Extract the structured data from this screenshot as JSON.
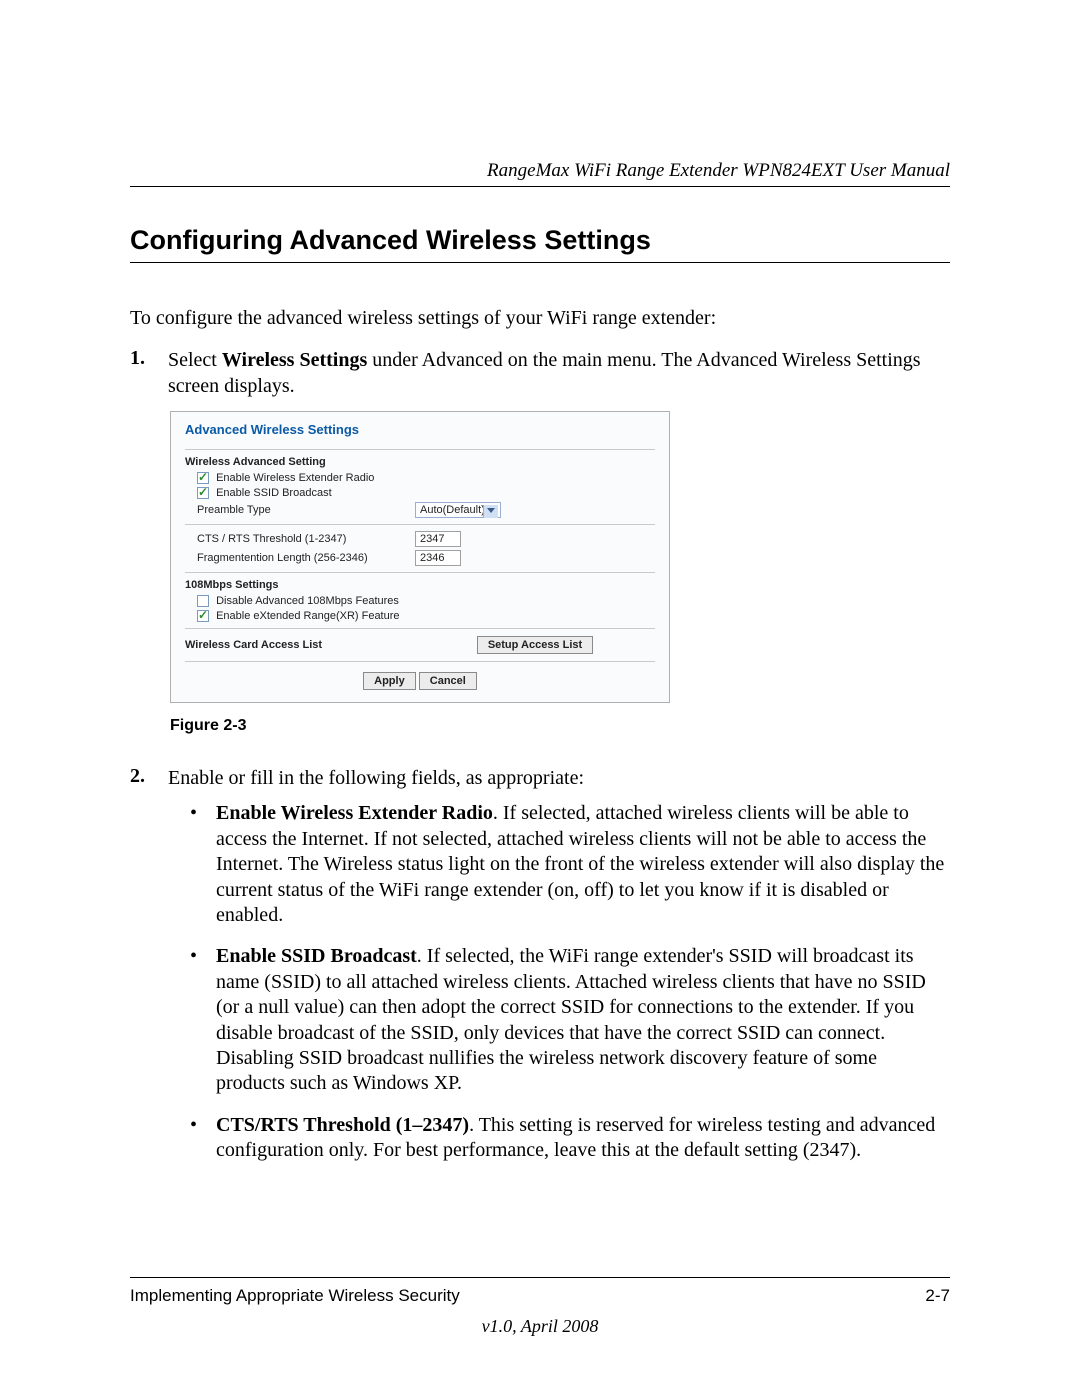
{
  "header": {
    "doc_title": "RangeMax WiFi Range Extender WPN824EXT User Manual"
  },
  "section": {
    "heading": "Configuring Advanced Wireless Settings",
    "intro": "To configure the advanced wireless settings of your WiFi range extender:"
  },
  "step1": {
    "num": "1.",
    "prefix": "Select ",
    "bold": "Wireless Settings",
    "suffix": " under Advanced on the main menu. The Advanced Wireless Settings screen displays."
  },
  "screenshot": {
    "title": "Advanced Wireless Settings",
    "sec1_head": "Wireless Advanced Setting",
    "chk_radio": "Enable Wireless Extender Radio",
    "chk_ssid": "Enable SSID Broadcast",
    "preamble_label": "Preamble Type",
    "preamble_value": "Auto(Default)",
    "cts_label": "CTS / RTS Threshold (1-2347)",
    "cts_value": "2347",
    "frag_label": "Fragmentention Length (256-2346)",
    "frag_value": "2346",
    "sec2_head": "108Mbps Settings",
    "chk_108": "Disable Advanced 108Mbps Features",
    "chk_xr": "Enable eXtended Range(XR) Feature",
    "sec3_head": "Wireless Card Access List",
    "btn_access": "Setup Access List",
    "btn_apply": "Apply",
    "btn_cancel": "Cancel",
    "colors": {
      "title": "#0a5aa6",
      "border": "#b0b0b0",
      "bg": "#fafbfd",
      "check": "#2e8b2e"
    }
  },
  "figure_caption": "Figure 2-3",
  "step2": {
    "num": "2.",
    "text": "Enable or fill in the following fields, as appropriate:"
  },
  "bullets": [
    {
      "bold": "Enable Wireless Extender Radio",
      "rest": ". If selected, attached wireless clients will be able to access the Internet. If not selected, attached wireless clients will not be able to access the Internet. The Wireless status light on the front of the wireless extender will also display the current status of the WiFi range extender (on, off) to let you know if it is disabled or enabled."
    },
    {
      "bold": "Enable SSID Broadcast",
      "rest": ". If selected, the WiFi range extender's SSID will broadcast its name (SSID) to all attached wireless clients. Attached wireless clients that have no SSID (or a null value) can then adopt the correct SSID for connections to the extender. If you disable broadcast of the SSID, only devices that have the correct SSID can connect. Disabling SSID broadcast nullifies the wireless network discovery feature of some products such as Windows XP."
    },
    {
      "bold": "CTS/RTS Threshold (1–2347)",
      "rest": ". This setting is reserved for wireless testing and advanced configuration only. For best performance, leave this at the default setting (2347)."
    }
  ],
  "footer": {
    "left": "Implementing Appropriate Wireless Security",
    "right": "2-7",
    "version": "v1.0, April 2008"
  }
}
